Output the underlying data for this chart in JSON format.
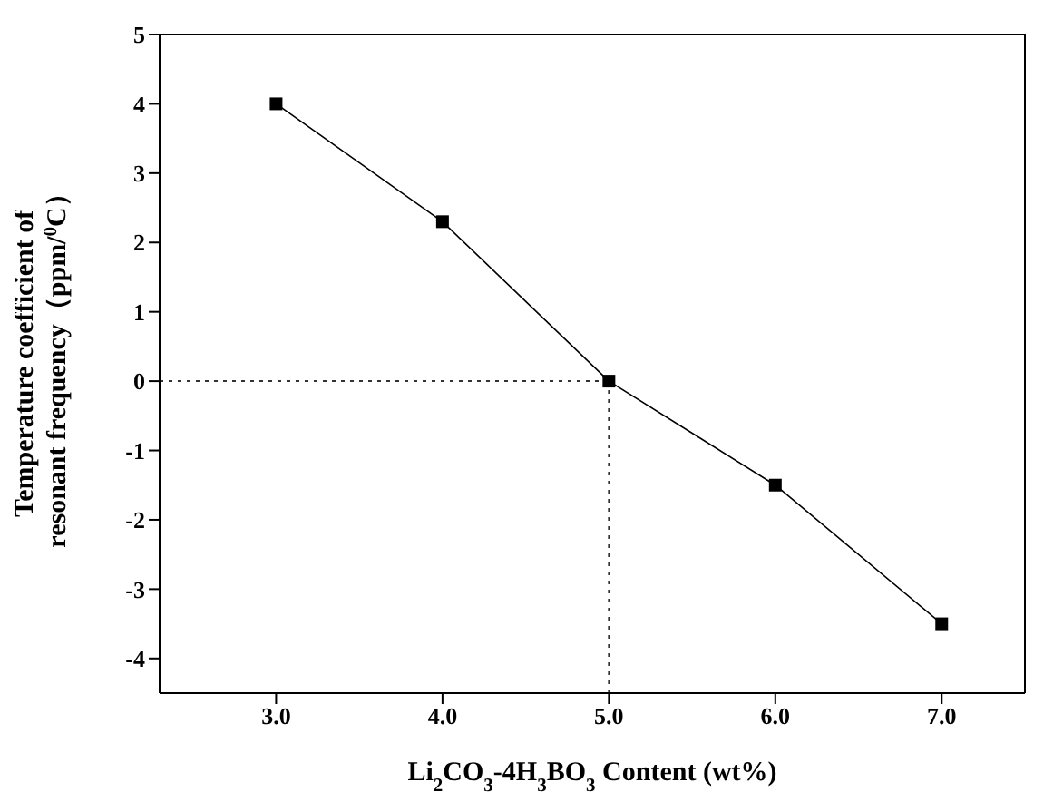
{
  "chart_data": {
    "type": "line",
    "xlabel": "Li$_{2}$CO$_{3}$-4H$_{3}$BO$_{3}$ Content (wt%)",
    "ylabel": "Temperature coefficient of\nresonant frequency（ppm/$^{0}$C）",
    "x": [
      3.0,
      4.0,
      5.0,
      6.0,
      7.0
    ],
    "series": [
      {
        "color": "#000000",
        "values": [
          4,
          2.3,
          0,
          -1.5,
          -3.5
        ],
        "marker": "square",
        "line_style": "solid"
      }
    ],
    "ref_lines": [
      {
        "axis": "y",
        "value": 0,
        "color": "#333333",
        "line_style": "dotted"
      },
      {
        "axis": "x",
        "value": 5.0,
        "color": "#333333",
        "line_style": "dotted"
      }
    ],
    "xlim": [
      2.3,
      7.5
    ],
    "xticks": [
      {
        "value": 3,
        "label": "3.0"
      },
      {
        "value": 4,
        "label": "4.0"
      },
      {
        "value": 5,
        "label": "5.0"
      },
      {
        "value": 6,
        "label": "6.0"
      },
      {
        "value": 7,
        "label": "7.0"
      }
    ],
    "ylim": [
      -4.5,
      5
    ],
    "yticks": [
      -4,
      -3,
      -2,
      -1,
      0,
      1,
      2,
      3,
      4,
      5
    ],
    "grid": false,
    "legend": false
  }
}
